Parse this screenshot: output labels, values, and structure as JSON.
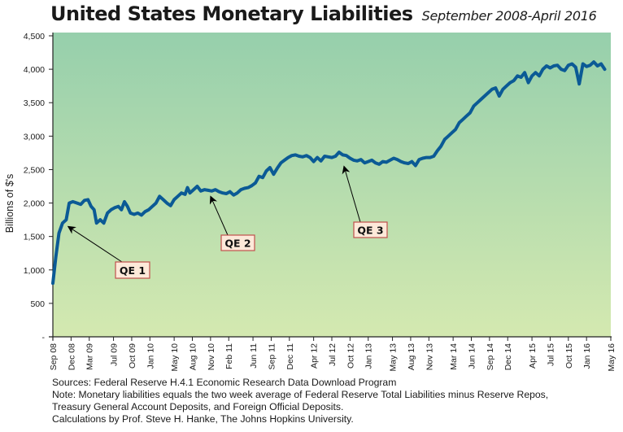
{
  "chart_data": {
    "type": "line",
    "title": "United States Monetary Liabilities",
    "subtitle": "September 2008-April 2016",
    "xlabel": "",
    "ylabel": "Billions of $'s",
    "ylim": [
      0,
      4500
    ],
    "yticks": [
      0,
      500,
      1000,
      1500,
      2000,
      2500,
      3000,
      3500,
      4000,
      4500
    ],
    "ytick_labels": [
      "-",
      "500",
      "1,000",
      "1,500",
      "2,000",
      "2,500",
      "3,000",
      "3,500",
      "4,000",
      "4,500"
    ],
    "xlim_months": [
      0,
      92
    ],
    "xticks": [
      {
        "label": "Sep 08",
        "month": 0
      },
      {
        "label": "Dec 08",
        "month": 3
      },
      {
        "label": "Mar  09",
        "month": 6
      },
      {
        "label": "Jul 09",
        "month": 10
      },
      {
        "label": "Oct 09",
        "month": 13
      },
      {
        "label": "Jan 10",
        "month": 16
      },
      {
        "label": "May 10",
        "month": 20
      },
      {
        "label": "Aug 10",
        "month": 23
      },
      {
        "label": "Nov 10",
        "month": 26
      },
      {
        "label": "Feb  11",
        "month": 29
      },
      {
        "label": "Jun 11",
        "month": 33
      },
      {
        "label": "Sep 11",
        "month": 36
      },
      {
        "label": "Dec 11",
        "month": 39
      },
      {
        "label": "Apr 12",
        "month": 43
      },
      {
        "label": "Jul 12",
        "month": 46
      },
      {
        "label": "Oct 12",
        "month": 49
      },
      {
        "label": "Jan 13",
        "month": 52
      },
      {
        "label": "May 13",
        "month": 56
      },
      {
        "label": "Aug 13",
        "month": 59
      },
      {
        "label": "Nov 13",
        "month": 62
      },
      {
        "label": "Mar 14",
        "month": 66
      },
      {
        "label": "Jun 14",
        "month": 69
      },
      {
        "label": "Sep 14",
        "month": 72
      },
      {
        "label": "Dec 14",
        "month": 75
      },
      {
        "label": "Apr 15",
        "month": 79
      },
      {
        "label": "Jul 15",
        "month": 82
      },
      {
        "label": "Oct 15",
        "month": 85
      },
      {
        "label": "Jan 16",
        "month": 88
      },
      {
        "label": "May 16",
        "month": 92
      }
    ],
    "grid": false,
    "series": [
      {
        "name": "Monetary Liabilities",
        "color": "#0b5a95",
        "points": [
          [
            0,
            800
          ],
          [
            0.5,
            1200
          ],
          [
            1,
            1550
          ],
          [
            1.6,
            1700
          ],
          [
            2.2,
            1750
          ],
          [
            2.7,
            2000
          ],
          [
            3.3,
            2020
          ],
          [
            4,
            2000
          ],
          [
            4.6,
            1980
          ],
          [
            5.2,
            2040
          ],
          [
            5.8,
            2050
          ],
          [
            6.3,
            1950
          ],
          [
            6.8,
            1900
          ],
          [
            7.2,
            1700
          ],
          [
            7.8,
            1750
          ],
          [
            8.4,
            1700
          ],
          [
            9,
            1850
          ],
          [
            9.6,
            1900
          ],
          [
            10.2,
            1930
          ],
          [
            10.8,
            1950
          ],
          [
            11.3,
            1900
          ],
          [
            11.8,
            2020
          ],
          [
            12.3,
            1950
          ],
          [
            12.8,
            1850
          ],
          [
            13.4,
            1830
          ],
          [
            14,
            1850
          ],
          [
            14.6,
            1820
          ],
          [
            15.2,
            1870
          ],
          [
            15.8,
            1900
          ],
          [
            16.4,
            1950
          ],
          [
            17,
            2000
          ],
          [
            17.6,
            2100
          ],
          [
            18.2,
            2050
          ],
          [
            18.8,
            2000
          ],
          [
            19.4,
            1960
          ],
          [
            20,
            2050
          ],
          [
            20.6,
            2100
          ],
          [
            21.2,
            2150
          ],
          [
            21.8,
            2130
          ],
          [
            22.2,
            2230
          ],
          [
            22.6,
            2150
          ],
          [
            23.2,
            2200
          ],
          [
            23.8,
            2250
          ],
          [
            24.4,
            2180
          ],
          [
            25,
            2200
          ],
          [
            25.6,
            2190
          ],
          [
            26.2,
            2180
          ],
          [
            26.8,
            2200
          ],
          [
            27.4,
            2170
          ],
          [
            28,
            2150
          ],
          [
            28.6,
            2140
          ],
          [
            29.2,
            2170
          ],
          [
            29.8,
            2120
          ],
          [
            30.4,
            2150
          ],
          [
            31,
            2200
          ],
          [
            31.6,
            2220
          ],
          [
            32.2,
            2230
          ],
          [
            32.8,
            2260
          ],
          [
            33.4,
            2300
          ],
          [
            34,
            2400
          ],
          [
            34.6,
            2380
          ],
          [
            35.2,
            2480
          ],
          [
            35.8,
            2530
          ],
          [
            36.4,
            2430
          ],
          [
            37,
            2520
          ],
          [
            37.6,
            2600
          ],
          [
            38.2,
            2640
          ],
          [
            38.8,
            2680
          ],
          [
            39.4,
            2710
          ],
          [
            40,
            2720
          ],
          [
            40.6,
            2700
          ],
          [
            41.2,
            2690
          ],
          [
            41.8,
            2710
          ],
          [
            42.4,
            2680
          ],
          [
            43,
            2620
          ],
          [
            43.6,
            2680
          ],
          [
            44.2,
            2630
          ],
          [
            44.8,
            2700
          ],
          [
            45.4,
            2690
          ],
          [
            46,
            2680
          ],
          [
            46.6,
            2700
          ],
          [
            47.2,
            2760
          ],
          [
            47.8,
            2720
          ],
          [
            48.4,
            2710
          ],
          [
            49,
            2670
          ],
          [
            49.6,
            2640
          ],
          [
            50.2,
            2630
          ],
          [
            50.8,
            2650
          ],
          [
            51.4,
            2600
          ],
          [
            52,
            2620
          ],
          [
            52.6,
            2640
          ],
          [
            53.2,
            2600
          ],
          [
            53.8,
            2580
          ],
          [
            54.4,
            2620
          ],
          [
            55,
            2610
          ],
          [
            55.6,
            2640
          ],
          [
            56.2,
            2670
          ],
          [
            56.8,
            2650
          ],
          [
            57.4,
            2620
          ],
          [
            58,
            2600
          ],
          [
            58.6,
            2590
          ],
          [
            59.2,
            2620
          ],
          [
            59.8,
            2560
          ],
          [
            60.4,
            2650
          ],
          [
            61,
            2670
          ],
          [
            61.6,
            2680
          ],
          [
            62.2,
            2680
          ],
          [
            62.8,
            2700
          ],
          [
            63.4,
            2780
          ],
          [
            64,
            2850
          ],
          [
            64.6,
            2950
          ],
          [
            65.2,
            3000
          ],
          [
            65.8,
            3050
          ],
          [
            66.4,
            3100
          ],
          [
            67,
            3200
          ],
          [
            67.6,
            3250
          ],
          [
            68.2,
            3300
          ],
          [
            68.8,
            3350
          ],
          [
            69.4,
            3450
          ],
          [
            70,
            3500
          ],
          [
            70.6,
            3550
          ],
          [
            71.2,
            3600
          ],
          [
            71.8,
            3650
          ],
          [
            72.4,
            3700
          ],
          [
            73,
            3720
          ],
          [
            73.6,
            3600
          ],
          [
            74.2,
            3700
          ],
          [
            74.8,
            3750
          ],
          [
            75.4,
            3800
          ],
          [
            76,
            3830
          ],
          [
            76.6,
            3900
          ],
          [
            77.2,
            3880
          ],
          [
            77.8,
            3950
          ],
          [
            78.4,
            3800
          ],
          [
            79,
            3900
          ],
          [
            79.6,
            3950
          ],
          [
            80.2,
            3900
          ],
          [
            80.8,
            4000
          ],
          [
            81.4,
            4050
          ],
          [
            82,
            4020
          ],
          [
            82.6,
            4050
          ],
          [
            83.2,
            4060
          ],
          [
            83.8,
            4000
          ],
          [
            84.4,
            3980
          ],
          [
            85,
            4060
          ],
          [
            85.6,
            4080
          ],
          [
            86.2,
            4030
          ],
          [
            86.8,
            3780
          ],
          [
            87.4,
            4080
          ],
          [
            88,
            4040
          ],
          [
            88.6,
            4060
          ],
          [
            89.2,
            4110
          ],
          [
            89.8,
            4050
          ],
          [
            90.4,
            4080
          ],
          [
            91,
            4000
          ]
        ]
      }
    ],
    "annotations": [
      {
        "label": "QE 1",
        "arrow_to_month": 2.5,
        "arrow_to_value": 1650
      },
      {
        "label": "QE 2",
        "arrow_to_month": 26,
        "arrow_to_value": 2100
      },
      {
        "label": "QE 3",
        "arrow_to_month": 48,
        "arrow_to_value": 2550
      }
    ],
    "legend": "none"
  },
  "notes": [
    "Sources: Federal Reserve H.4.1 Economic Research Data Download Program",
    "Note: Monetary liabilities equals the two week average of Federal Reserve Total Liabilities minus Reserve Repos,",
    "Treasury General Account Deposits, and Foreign Official Deposits.",
    "Calculations by Prof. Steve H. Hanke, The Johns Hopkins University."
  ],
  "colors": {
    "line": "#0b5a95",
    "bg_top": "#96cfac",
    "bg_bottom": "#d4e9b0",
    "annotation_fill": "#fde9d9",
    "annotation_border": "#c0504d"
  }
}
